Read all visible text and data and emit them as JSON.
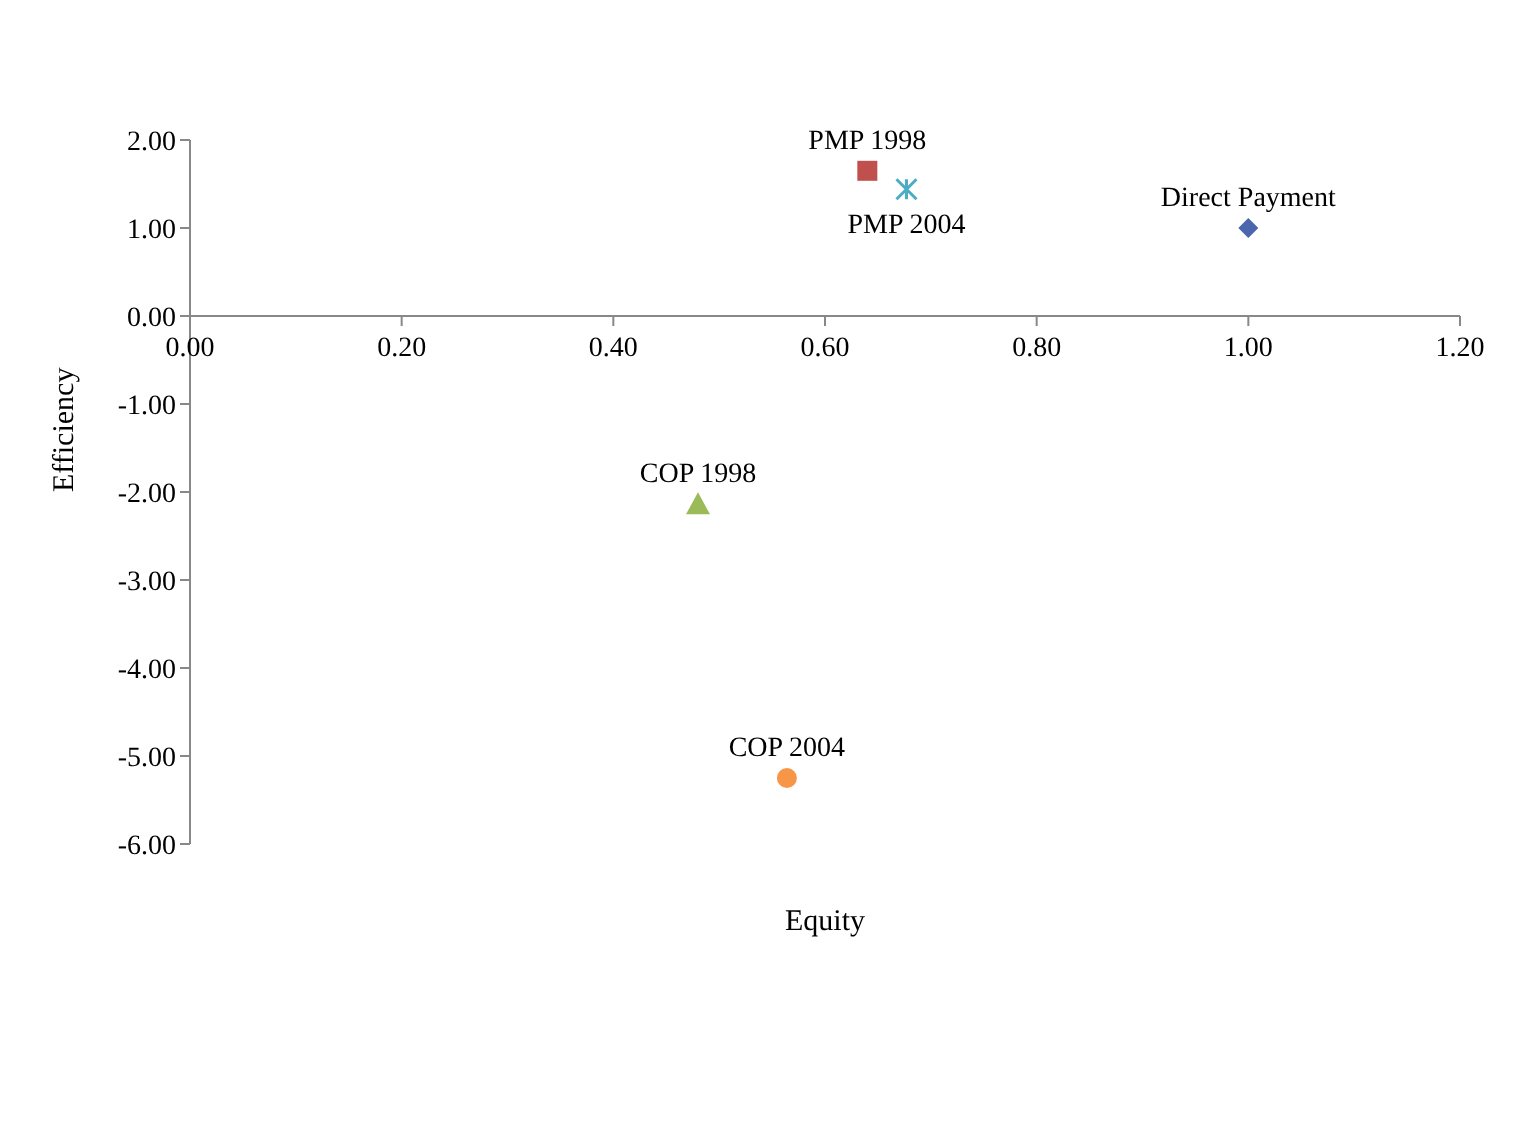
{
  "chart_data": {
    "type": "scatter",
    "xlabel": "Equity",
    "ylabel": "Efficiency",
    "xlim": [
      0,
      1.2
    ],
    "ylim": [
      -6,
      2
    ],
    "xticks": [
      {
        "value": 0,
        "label": "0.00"
      },
      {
        "value": 0.2,
        "label": "0.20"
      },
      {
        "value": 0.4,
        "label": "0.40"
      },
      {
        "value": 0.6,
        "label": "0.60"
      },
      {
        "value": 0.8,
        "label": "0.80"
      },
      {
        "value": 1,
        "label": "1.00"
      },
      {
        "value": 1.2,
        "label": "1.20"
      }
    ],
    "yticks": [
      {
        "value": -6,
        "label": "-6.00"
      },
      {
        "value": -5,
        "label": "-5.00"
      },
      {
        "value": -4,
        "label": "-4.00"
      },
      {
        "value": -3,
        "label": "-3.00"
      },
      {
        "value": -2,
        "label": "-2.00"
      },
      {
        "value": -1,
        "label": "-1.00"
      },
      {
        "value": 0,
        "label": "0.00"
      },
      {
        "value": 1,
        "label": "1.00"
      },
      {
        "value": 2,
        "label": "2.00"
      }
    ],
    "grid": false,
    "legend": false,
    "series": [
      {
        "name": "PMP 1998",
        "color": "#c0504d",
        "marker": "square",
        "x": [
          0.64
        ],
        "values": [
          1.65
        ]
      },
      {
        "name": "PMP 2004",
        "color": "#4bacc6",
        "marker": "cross",
        "x": [
          0.677
        ],
        "values": [
          1.44
        ]
      },
      {
        "name": "Direct Payment",
        "color": "#4a66ac",
        "marker": "diamond",
        "x": [
          1.0
        ],
        "values": [
          1.0
        ]
      },
      {
        "name": "COP 1998",
        "color": "#9bbb59",
        "marker": "triangle",
        "x": [
          0.48
        ],
        "values": [
          -2.14
        ]
      },
      {
        "name": "COP 2004",
        "color": "#f79646",
        "marker": "circle",
        "x": [
          0.564
        ],
        "values": [
          -5.25
        ]
      }
    ]
  }
}
